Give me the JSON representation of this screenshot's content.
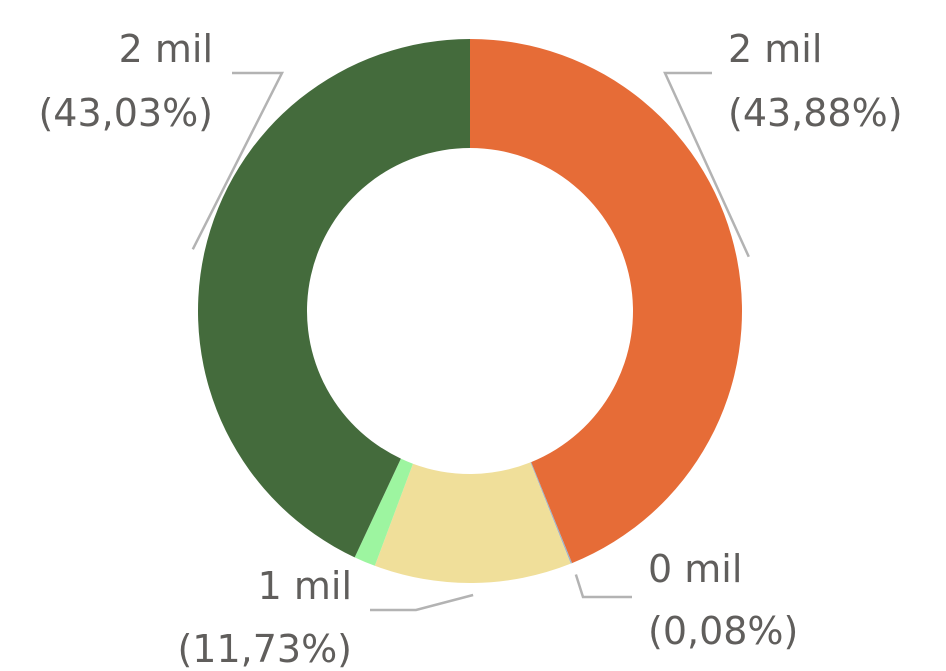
{
  "chart_data": {
    "type": "donut",
    "values": [
      43.88,
      0.08,
      11.73,
      1.28,
      43.03
    ],
    "value_labels": [
      "(43,88%)",
      "(0,08%)",
      "(11,73%)",
      null,
      "(43,03%)"
    ],
    "amount_labels": [
      "2 mil",
      "0 mil",
      "1 mil",
      null,
      "2 mil"
    ],
    "colors": [
      "#E66C37",
      "#9FB3C8",
      "#F0DF9A",
      "#9DF5A0",
      "#446B3C"
    ]
  }
}
